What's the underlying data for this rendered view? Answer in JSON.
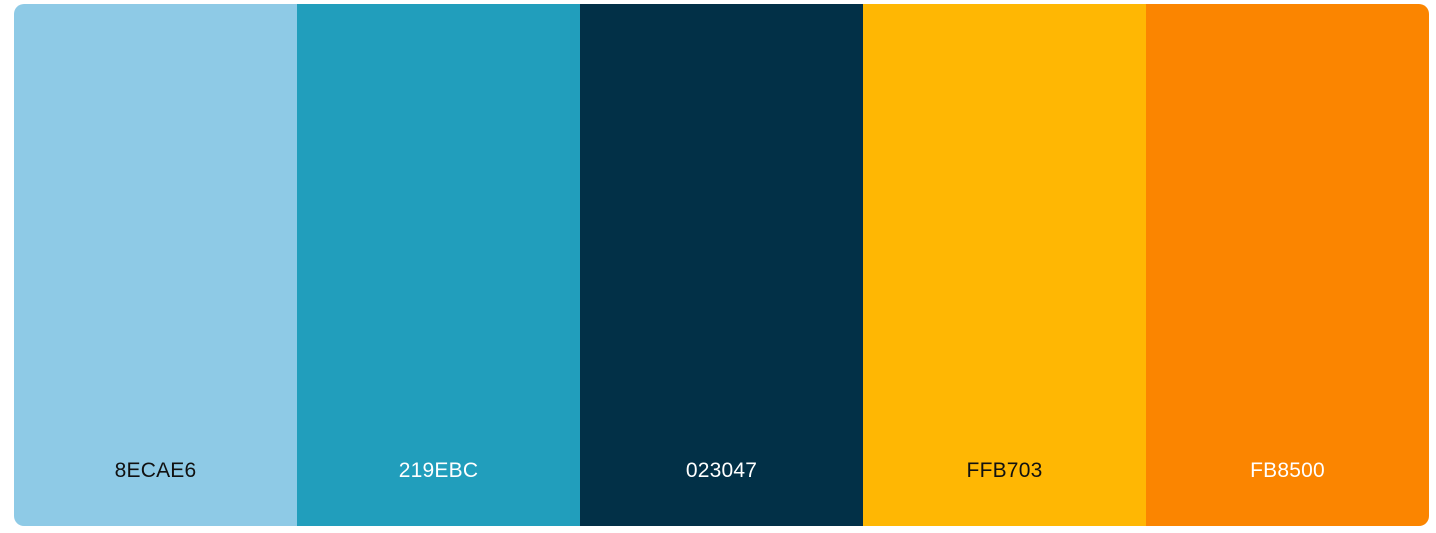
{
  "palette": {
    "swatches": [
      {
        "hex": "8ECAE6",
        "color": "#8ECAE6",
        "text_color": "#111111"
      },
      {
        "hex": "219EBC",
        "color": "#219EBC",
        "text_color": "#ffffff"
      },
      {
        "hex": "023047",
        "color": "#023047",
        "text_color": "#ffffff"
      },
      {
        "hex": "FFB703",
        "color": "#FFB703",
        "text_color": "#111111"
      },
      {
        "hex": "FB8500",
        "color": "#FB8500",
        "text_color": "#ffffff"
      }
    ]
  }
}
